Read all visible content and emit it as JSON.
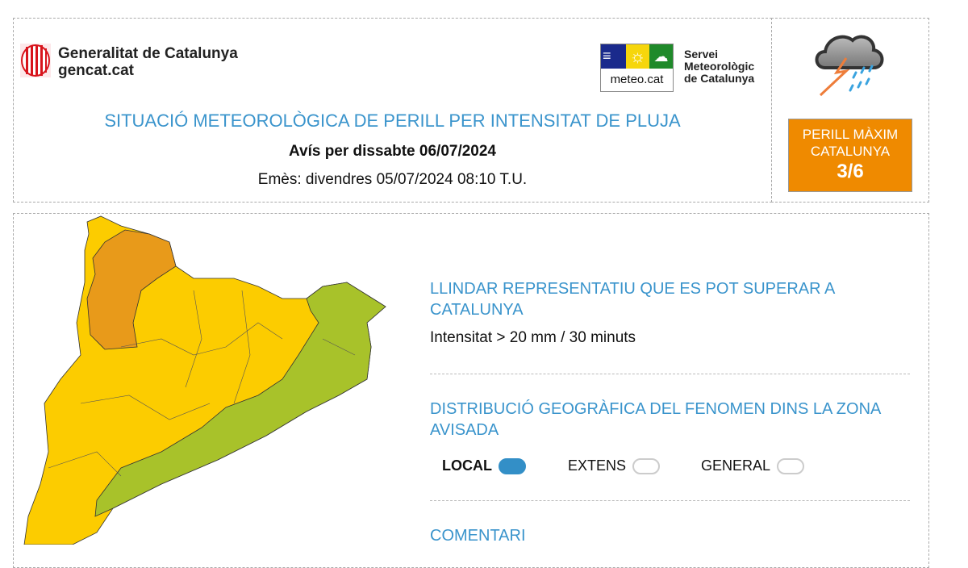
{
  "header": {
    "gencat_name": "Generalitat de Catalunya",
    "gencat_site": "gencat.cat",
    "meteocat_logo_text": "meteo.cat",
    "smc_line1": "Servei",
    "smc_line2": "Meteorològic",
    "smc_line3": "de Catalunya",
    "title": "SITUACIÓ METEOROLÒGICA DE PERILL PER INTENSITAT DE PLUJA",
    "forecast_for": "Avís per dissabte 06/07/2024",
    "issued": "Emès: divendres 05/07/2024 08:10 T.U."
  },
  "danger": {
    "icon": "storm-rain-icon",
    "line1": "PERILL MÀXIM",
    "line2": "CATALUNYA",
    "level": "3/6",
    "color": "#ef8a00"
  },
  "threshold": {
    "heading": "LLINDAR REPRESENTATIU QUE ES POT SUPERAR A CATALUNYA",
    "value": "Intensitat > 20 mm / 30 minuts"
  },
  "distribution": {
    "heading": "DISTRIBUCIÓ GEOGRÀFICA DEL FENOMEN DINS LA ZONA AVISADA",
    "options": [
      {
        "label": "LOCAL",
        "selected": true
      },
      {
        "label": "EXTENS",
        "selected": false
      },
      {
        "label": "GENERAL",
        "selected": false
      }
    ]
  },
  "comment": {
    "heading": "COMENTARI"
  },
  "map_colors": {
    "level_1": "#a8c22a",
    "level_2": "#fccc00",
    "level_3": "#e89a1a"
  }
}
